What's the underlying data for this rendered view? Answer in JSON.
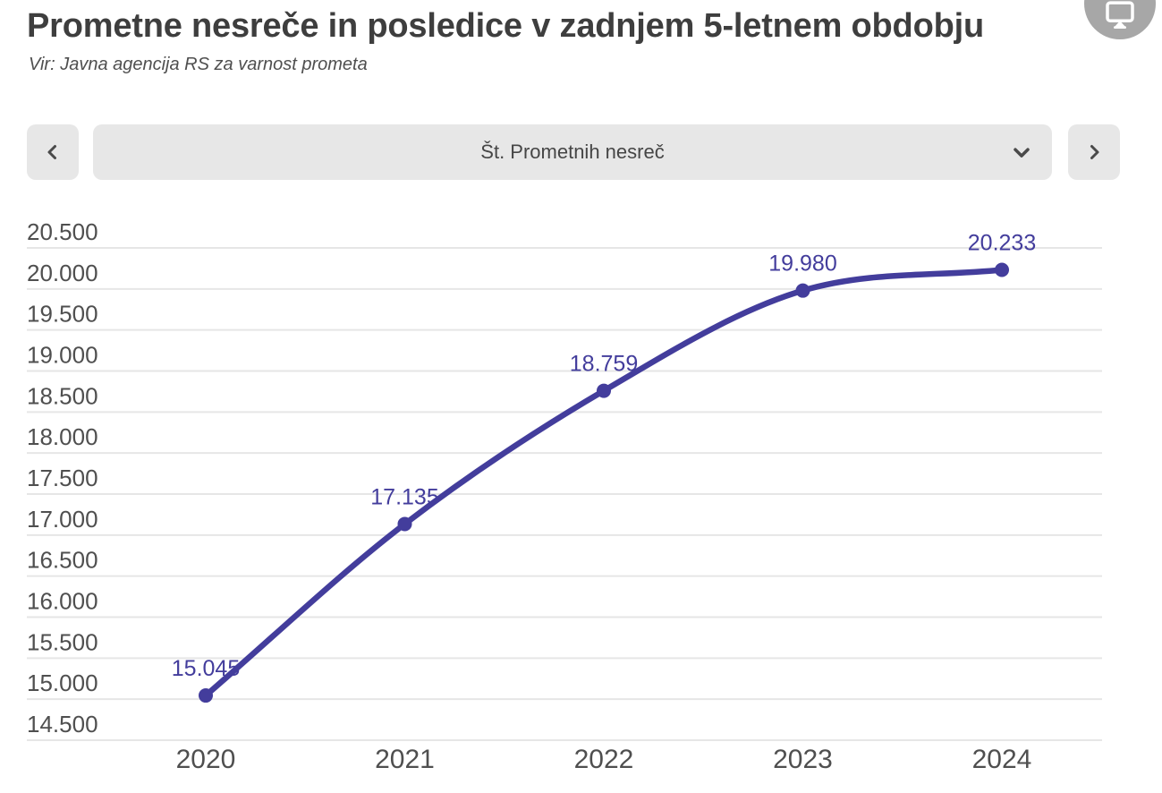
{
  "header": {
    "title": "Prometne nesreče in posledice v zadnjem 5-letnem obdobju",
    "source": "Vir: Javna agencija RS za varnost prometa"
  },
  "toolbar": {
    "display_button_icon": "monitor-icon"
  },
  "metric_selector": {
    "selected": "Št. Prometnih nesreč",
    "prev_icon": "chevron-left-icon",
    "next_icon": "chevron-right-icon",
    "open_icon": "chevron-down-icon"
  },
  "colors": {
    "accent": "#433d9c",
    "grid": "#e6e6e6",
    "axis_text": "#4f4f4f",
    "title_text": "#3e3e3e",
    "control_bg": "#e7e7e7",
    "control_icon": "#4a4a4a",
    "fab_bg": "#a7a7a7",
    "fab_icon": "#ffffff"
  },
  "chart_data": {
    "type": "line",
    "title": "Prometne nesreče in posledice v zadnjem 5-letnem obdobju",
    "source": "Vir: Javna agencija RS za varnost prometa",
    "series_name": "Št. Prometnih nesreč",
    "categories": [
      "2020",
      "2021",
      "2022",
      "2023",
      "2024"
    ],
    "values": [
      15045,
      17135,
      18759,
      19980,
      20233
    ],
    "point_labels": [
      "15.045",
      "17.135",
      "18.759",
      "19.980",
      "20.233"
    ],
    "y_ticks": [
      20500,
      20000,
      19500,
      19000,
      18500,
      18000,
      17500,
      17000,
      16500,
      16000,
      15500,
      15000,
      14500
    ],
    "y_tick_labels": [
      "20.500",
      "20.000",
      "19.500",
      "19.000",
      "18.500",
      "18.000",
      "17.500",
      "17.000",
      "16.500",
      "16.000",
      "15.500",
      "15.000",
      "14.500"
    ],
    "ylim": [
      14500,
      20500
    ],
    "xlabel": "",
    "ylabel": "",
    "grid": true,
    "legend": "none",
    "line_color": "#433d9c",
    "smooth": true
  }
}
